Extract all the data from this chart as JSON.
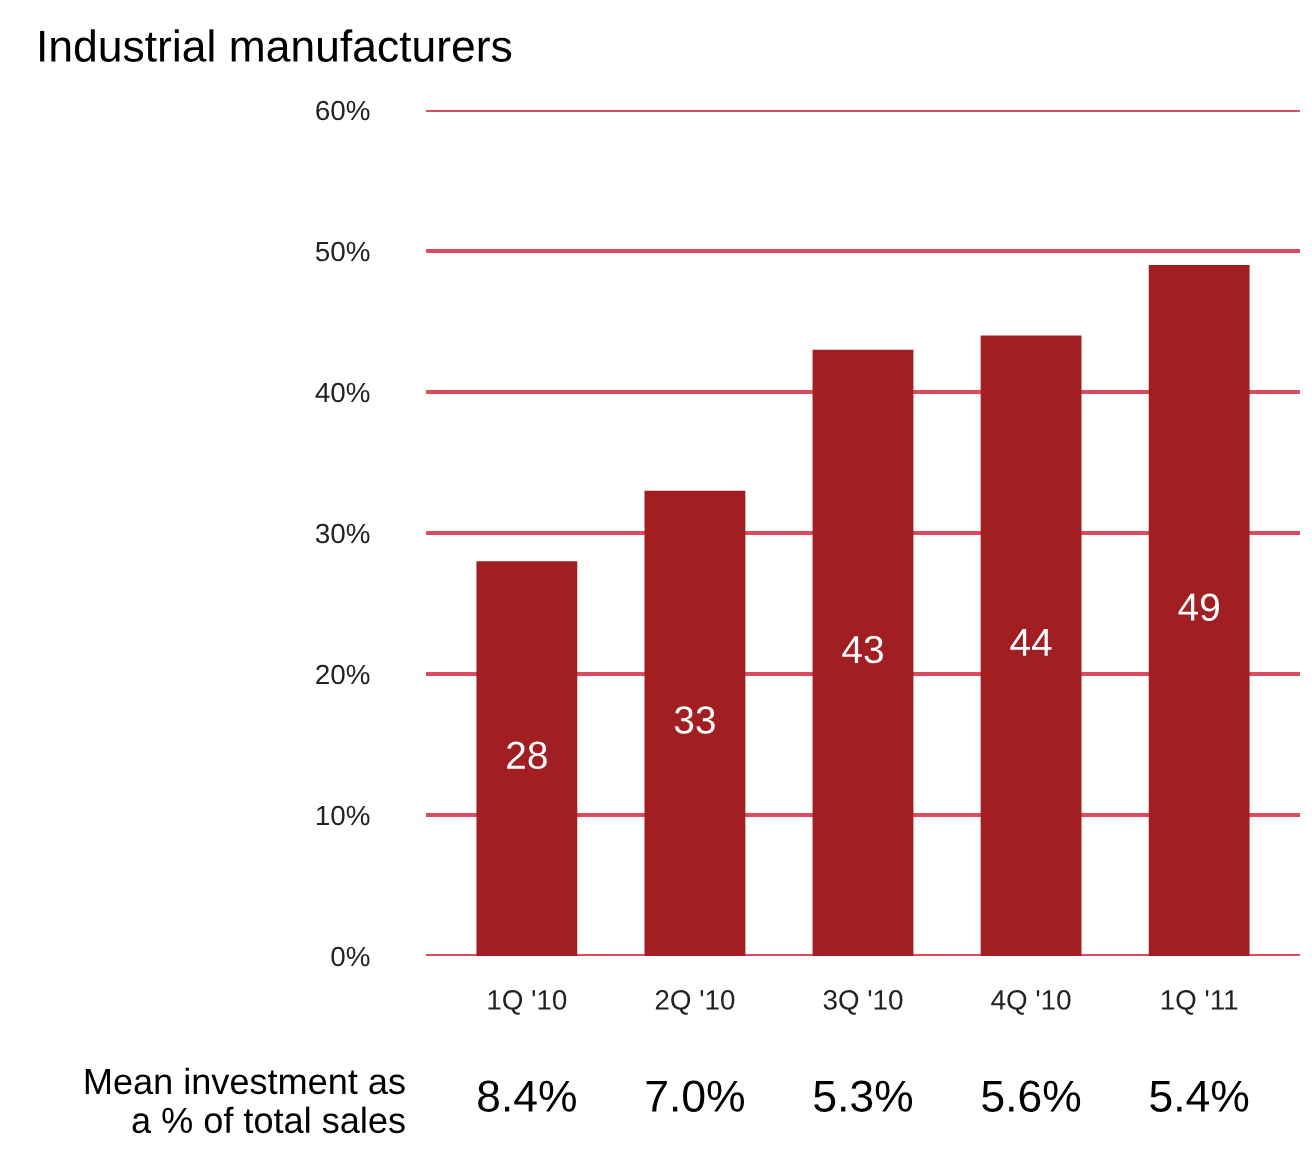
{
  "chart_data": {
    "type": "bar",
    "title": "Industrial manufacturers",
    "categories": [
      "1Q '10",
      "2Q '10",
      "3Q '10",
      "4Q '10",
      "1Q '11"
    ],
    "values": [
      28,
      33,
      43,
      44,
      49
    ],
    "color": "#a11f22",
    "ylim": [
      0,
      60
    ],
    "yticks": [
      {
        "value": 0,
        "label": "0%"
      },
      {
        "value": 10,
        "label": "10%"
      },
      {
        "value": 20,
        "label": "20%"
      },
      {
        "value": 30,
        "label": "30%"
      },
      {
        "value": 40,
        "label": "40%"
      },
      {
        "value": 50,
        "label": "50%"
      },
      {
        "value": 60,
        "label": "60%"
      }
    ],
    "grid": "y",
    "data_labels": true,
    "annotations": [
      "Mean investment as\na % of total sales",
      "8.4%",
      "7.0%",
      "5.3%",
      "5.6%",
      "5.4%"
    ]
  }
}
